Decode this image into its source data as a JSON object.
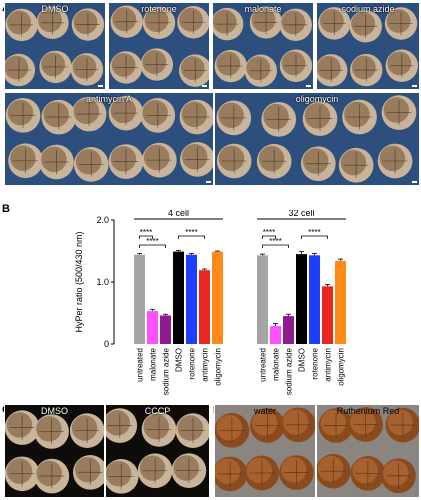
{
  "panels": {
    "a": {
      "letter": "A"
    },
    "b": {
      "letter": "B"
    },
    "c": {
      "letter": "C"
    },
    "d": {
      "letter": "D"
    }
  },
  "photos_a_top": [
    "DMSO",
    "rotenone",
    "malonate",
    "sodium azide"
  ],
  "photos_a_bottom": [
    "antimycin A",
    "oligomycin"
  ],
  "photos_c": [
    "DMSO",
    "CCCP"
  ],
  "photos_d": [
    "water",
    "Ruthenium Red"
  ],
  "colors": {
    "photo_blue": "#2d4f7d",
    "photo_black": "#0e0c0a",
    "photo_grey": "#8a8580"
  },
  "chart_data": {
    "type": "bar",
    "ylabel": "HyPer ratio (500/430 nm)",
    "ylim": [
      0,
      2.0
    ],
    "yticks": [
      "0",
      "1.0",
      "2.0"
    ],
    "groups": [
      {
        "name": "4 cell",
        "categories": [
          "untreated",
          "malonate",
          "sodium azide",
          "DMSO",
          "rotenone",
          "antimycin",
          "oligomycin"
        ],
        "values": [
          1.44,
          0.53,
          0.46,
          1.49,
          1.44,
          1.19,
          1.49
        ],
        "errors": [
          0.02,
          0.03,
          0.02,
          0.02,
          0.02,
          0.02,
          0.01
        ],
        "colors": [
          "#a5a5a5",
          "#ff4fff",
          "#8f1c8f",
          "#000000",
          "#1f3fff",
          "#e8281e",
          "#ff8a1a"
        ],
        "significance": [
          {
            "from": 0,
            "to": 1,
            "label": "****"
          },
          {
            "from": 0,
            "to": 2,
            "label": "****"
          },
          {
            "from": 3,
            "to": 5,
            "label": "****"
          }
        ]
      },
      {
        "name": "32 cell",
        "categories": [
          "untreated",
          "malonate",
          "sodium azide",
          "DMSO",
          "rotenone",
          "antimycin",
          "oligomycin"
        ],
        "values": [
          1.43,
          0.29,
          0.45,
          1.45,
          1.43,
          0.93,
          1.34
        ],
        "errors": [
          0.02,
          0.04,
          0.03,
          0.04,
          0.03,
          0.03,
          0.03
        ],
        "colors": [
          "#a5a5a5",
          "#ff4fff",
          "#8f1c8f",
          "#000000",
          "#1f3fff",
          "#e8281e",
          "#ff8a1a"
        ],
        "significance": [
          {
            "from": 0,
            "to": 1,
            "label": "****"
          },
          {
            "from": 0,
            "to": 2,
            "label": "****"
          },
          {
            "from": 3,
            "to": 5,
            "label": "****"
          }
        ]
      }
    ]
  }
}
